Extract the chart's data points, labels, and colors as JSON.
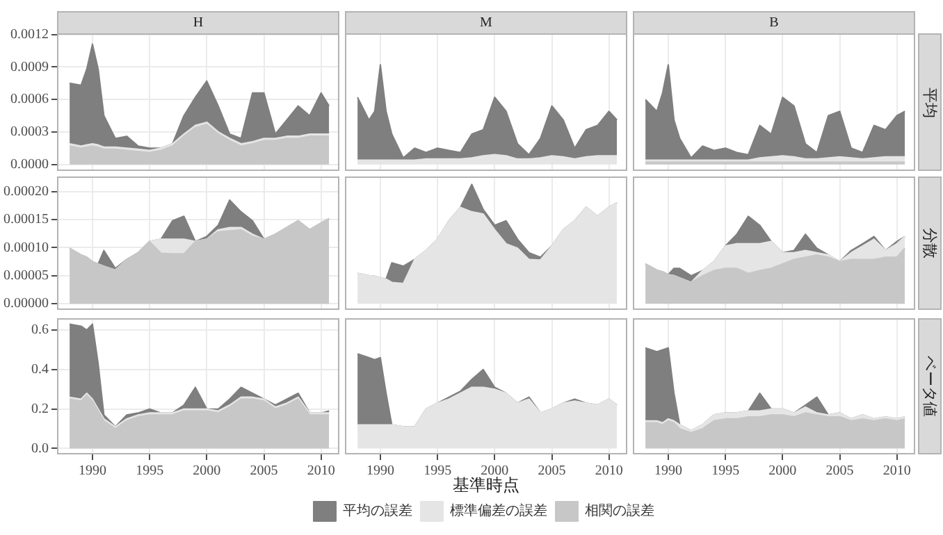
{
  "chart_data": [
    {
      "type": "area",
      "title": "H",
      "stacked": true,
      "grid": true,
      "tick_labels": "y",
      "xlim": [
        1986.9,
        2011.6
      ],
      "xticks": [
        1990,
        1995,
        2000,
        2005,
        2010
      ],
      "ylim": [
        -6e-05,
        0.00121
      ],
      "yticks": [
        {
          "value": 0,
          "label": "0.0000"
        },
        {
          "value": 0.0003,
          "label": "0.0003"
        },
        {
          "value": 0.0006,
          "label": "0.0006"
        },
        {
          "value": 0.0009,
          "label": "0.0009"
        },
        {
          "value": 0.0012,
          "label": "0.0012"
        }
      ],
      "x": [
        1988,
        1989,
        1989.5,
        1990,
        1990.5,
        1991,
        1992,
        1993,
        1994,
        1995,
        1996,
        1997,
        1998,
        1999,
        2000,
        2001,
        2002,
        2003,
        2004,
        2005,
        2006,
        2007,
        2008,
        2009,
        2010,
        2010.7
      ],
      "series": [
        {
          "color": "#c7c7c7",
          "values": [
            0.00017,
            0.00015,
            0.00016,
            0.00017,
            0.00016,
            0.00014,
            0.00014,
            0.00013,
            0.00012,
            0.00011,
            0.00013,
            0.00017,
            0.00026,
            0.00034,
            0.00037,
            0.00028,
            0.00022,
            0.00017,
            0.00019,
            0.00022,
            0.00022,
            0.00024,
            0.00024,
            0.00026,
            0.00026,
            0.00026
          ]
        },
        {
          "color": "#e5e5e5",
          "values": [
            2e-05,
            2e-05,
            2e-05,
            2e-05,
            2e-05,
            2e-05,
            2e-05,
            2e-05,
            2e-05,
            2e-05,
            2e-05,
            2e-05,
            2e-05,
            2e-05,
            2e-05,
            2e-05,
            2e-05,
            2e-05,
            2e-05,
            2e-05,
            2e-05,
            2e-05,
            2e-05,
            2e-05,
            2e-05,
            2e-05
          ]
        },
        {
          "color": "#7f7f7f",
          "values": [
            0.00056,
            0.00056,
            0.0007,
            0.00092,
            0.0007,
            0.00029,
            8e-05,
            0.00011,
            3e-05,
            2e-05,
            0,
            0,
            0.00017,
            0.00026,
            0.00038,
            0.00024,
            4e-05,
            5e-05,
            0.00045,
            0.00042,
            4e-05,
            0.00015,
            0.00028,
            0.00017,
            0.00038,
            0.00026
          ]
        }
      ]
    },
    {
      "type": "area",
      "title": "M",
      "stacked": true,
      "grid": true,
      "tick_labels": false,
      "xlim": [
        1986.9,
        2011.6
      ],
      "xticks": [
        1990,
        1995,
        2000,
        2005,
        2010
      ],
      "ylim": [
        -6e-05,
        0.00121
      ],
      "yticks": [
        {
          "value": 0,
          "label": null
        },
        {
          "value": 0.0003,
          "label": null
        },
        {
          "value": 0.0006,
          "label": null
        },
        {
          "value": 0.0009,
          "label": null
        },
        {
          "value": 0.0012,
          "label": null
        }
      ],
      "x": [
        1988,
        1989,
        1989.5,
        1990,
        1990.5,
        1991,
        1992,
        1993,
        1994,
        1995,
        1996,
        1997,
        1998,
        1999,
        2000,
        2001,
        2002,
        2003,
        2004,
        2005,
        2006,
        2007,
        2008,
        2009,
        2010,
        2010.7
      ],
      "series": [
        {
          "color": "#e5e5e5",
          "values": [
            4e-05,
            4e-05,
            4e-05,
            4e-05,
            4e-05,
            4e-05,
            4e-05,
            4e-05,
            5e-05,
            5e-05,
            5e-05,
            5e-05,
            6e-05,
            8e-05,
            9e-05,
            8e-05,
            5e-05,
            5e-05,
            6e-05,
            8e-05,
            7e-05,
            5e-05,
            7e-05,
            8e-05,
            8e-05,
            8e-05
          ]
        },
        {
          "color": "#7f7f7f",
          "values": [
            0.00058,
            0.00037,
            0.00045,
            0.00088,
            0.00045,
            0.00024,
            2e-05,
            0.00011,
            6e-05,
            0.0001,
            8e-05,
            6e-05,
            0.00022,
            0.00024,
            0.00053,
            0.00041,
            0.00014,
            4e-05,
            0.00018,
            0.00046,
            0.00034,
            0.0001,
            0.00025,
            0.00028,
            0.00041,
            0.00033
          ]
        }
      ]
    },
    {
      "type": "area",
      "title": "B",
      "y2label": "平均",
      "stacked": true,
      "grid": true,
      "tick_labels": false,
      "xlim": [
        1986.9,
        2011.6
      ],
      "xticks": [
        1990,
        1995,
        2000,
        2005,
        2010
      ],
      "ylim": [
        -6e-05,
        0.00121
      ],
      "yticks": [
        {
          "value": 0,
          "label": null
        },
        {
          "value": 0.0003,
          "label": null
        },
        {
          "value": 0.0006,
          "label": null
        },
        {
          "value": 0.0009,
          "label": null
        },
        {
          "value": 0.0012,
          "label": null
        }
      ],
      "x": [
        1988,
        1989,
        1989.5,
        1990,
        1990.5,
        1991,
        1992,
        1993,
        1994,
        1995,
        1996,
        1997,
        1998,
        1999,
        2000,
        2001,
        2002,
        2003,
        2004,
        2005,
        2006,
        2007,
        2008,
        2009,
        2010,
        2010.7
      ],
      "series": [
        {
          "color": "#c7c7c7",
          "values": [
            2e-05,
            2e-05,
            2e-05,
            2e-05,
            2e-05,
            2e-05,
            2e-05,
            2e-05,
            2e-05,
            2e-05,
            2e-05,
            2e-05,
            2e-05,
            2e-05,
            2e-05,
            2e-05,
            2e-05,
            2e-05,
            2e-05,
            2e-05,
            2e-05,
            2e-05,
            2e-05,
            2e-05,
            2e-05,
            2e-05
          ]
        },
        {
          "color": "#e5e5e5",
          "values": [
            2e-05,
            2e-05,
            2e-05,
            2e-05,
            2e-05,
            2e-05,
            2e-05,
            2e-05,
            2e-05,
            2e-05,
            2e-05,
            2e-05,
            4e-05,
            5e-05,
            6e-05,
            5e-05,
            3e-05,
            3e-05,
            4e-05,
            5e-05,
            4e-05,
            3e-05,
            4e-05,
            5e-05,
            5e-05,
            5e-05
          ]
        },
        {
          "color": "#7f7f7f",
          "values": [
            0.00056,
            0.00045,
            0.00062,
            0.00088,
            0.00037,
            0.0002,
            2e-05,
            0.00013,
            9e-05,
            0.00011,
            7e-05,
            5e-05,
            0.0003,
            0.00021,
            0.00054,
            0.00047,
            0.00014,
            6e-05,
            0.00039,
            0.00042,
            9e-05,
            6e-05,
            0.0003,
            0.00025,
            0.00038,
            0.00042
          ]
        }
      ]
    },
    {
      "type": "area",
      "stacked": true,
      "grid": true,
      "tick_labels": "y",
      "xlim": [
        1986.9,
        2011.6
      ],
      "xticks": [
        1990,
        1995,
        2000,
        2005,
        2010
      ],
      "ylim": [
        -1.1e-05,
        0.000227
      ],
      "yticks": [
        {
          "value": 0,
          "label": "0.00000"
        },
        {
          "value": 5e-05,
          "label": "0.00005"
        },
        {
          "value": 0.0001,
          "label": "0.00010"
        },
        {
          "value": 0.00015,
          "label": "0.00015"
        },
        {
          "value": 0.0002,
          "label": "0.00020"
        }
      ],
      "x": [
        1988,
        1989,
        1989.5,
        1990,
        1990.5,
        1991,
        1992,
        1993,
        1994,
        1995,
        1996,
        1997,
        1998,
        1999,
        2000,
        2001,
        2002,
        2003,
        2004,
        2005,
        2006,
        2007,
        2008,
        2009,
        2010,
        2010.7
      ],
      "series": [
        {
          "color": "#c7c7c7",
          "values": [
            9.9e-05,
            8.7e-05,
            8.3e-05,
            7.5e-05,
            7.1e-05,
            6.7e-05,
            6e-05,
            7.9e-05,
            9.1e-05,
            0.000111,
            9e-05,
            8.9e-05,
            8.9e-05,
            0.000111,
            0.000115,
            0.000128,
            0.00013,
            0.000132,
            0.00012,
            0.000115,
            0.000124,
            0.000136,
            0.000148,
            0.000132,
            0.000144,
            0.000152
          ]
        },
        {
          "color": "#e5e5e5",
          "values": [
            0,
            0,
            0,
            0,
            0,
            0,
            0,
            0,
            0,
            0,
            2.5e-05,
            2.6e-05,
            2.6e-05,
            0,
            0,
            4e-06,
            6e-06,
            4e-06,
            4e-06,
            0,
            0,
            0,
            0,
            0,
            0,
            0
          ]
        },
        {
          "color": "#7f7f7f",
          "values": [
            0,
            0,
            0,
            0,
            0,
            2.8e-05,
            3e-06,
            0,
            0,
            0,
            0,
            3.3e-05,
            4.1e-05,
            0,
            5e-06,
            8e-06,
            4.9e-05,
            2.8e-05,
            2.4e-05,
            0,
            0,
            0,
            0,
            0,
            0,
            0
          ]
        }
      ]
    },
    {
      "type": "area",
      "stacked": true,
      "grid": true,
      "tick_labels": false,
      "xlim": [
        1986.9,
        2011.6
      ],
      "xticks": [
        1990,
        1995,
        2000,
        2005,
        2010
      ],
      "ylim": [
        -1.1e-05,
        0.000227
      ],
      "yticks": [
        {
          "value": 0,
          "label": null
        },
        {
          "value": 5e-05,
          "label": null
        },
        {
          "value": 0.0001,
          "label": null
        },
        {
          "value": 0.00015,
          "label": null
        },
        {
          "value": 0.0002,
          "label": null
        }
      ],
      "x": [
        1988,
        1989,
        1989.5,
        1990,
        1990.5,
        1991,
        1992,
        1993,
        1994,
        1995,
        1996,
        1997,
        1998,
        1999,
        2000,
        2001,
        2002,
        2003,
        2004,
        2005,
        2006,
        2007,
        2008,
        2009,
        2010,
        2010.7
      ],
      "series": [
        {
          "color": "#e5e5e5",
          "values": [
            5.4e-05,
            5e-05,
            4.9e-05,
            4.6e-05,
            4.4e-05,
            3.8e-05,
            3.6e-05,
            7.9e-05,
            9.5e-05,
            0.000115,
            0.000148,
            0.000172,
            0.000164,
            0.00016,
            0.000132,
            0.000107,
            9.9e-05,
            7.9e-05,
            7.8e-05,
            0.000103,
            0.000132,
            0.000148,
            0.000172,
            0.000156,
            0.000172,
            0.00018
          ]
        },
        {
          "color": "#7f7f7f",
          "values": [
            0,
            0,
            0,
            0,
            0,
            3.5e-05,
            3.1e-05,
            0,
            0,
            0,
            0,
            0,
            4.9e-05,
            8e-06,
            8e-06,
            4.1e-05,
            1.6e-05,
            1.2e-05,
            5e-06,
            0,
            0,
            0,
            0,
            0,
            0,
            0
          ]
        }
      ]
    },
    {
      "type": "area",
      "y2label": "分散",
      "stacked": true,
      "grid": true,
      "tick_labels": false,
      "xlim": [
        1986.9,
        2011.6
      ],
      "xticks": [
        1990,
        1995,
        2000,
        2005,
        2010
      ],
      "ylim": [
        -1.1e-05,
        0.000227
      ],
      "yticks": [
        {
          "value": 0,
          "label": null
        },
        {
          "value": 5e-05,
          "label": null
        },
        {
          "value": 0.0001,
          "label": null
        },
        {
          "value": 0.00015,
          "label": null
        },
        {
          "value": 0.0002,
          "label": null
        }
      ],
      "x": [
        1988,
        1989,
        1989.5,
        1990,
        1990.5,
        1991,
        1992,
        1993,
        1994,
        1995,
        1996,
        1997,
        1998,
        1999,
        2000,
        2001,
        2002,
        2003,
        2004,
        2005,
        2006,
        2007,
        2008,
        2009,
        2010,
        2010.7
      ],
      "series": [
        {
          "color": "#c7c7c7",
          "values": [
            7.1e-05,
            6e-05,
            5.7e-05,
            5.2e-05,
            5e-05,
            4.6e-05,
            3.8e-05,
            5e-05,
            5.9e-05,
            6.3e-05,
            6.3e-05,
            5.4e-05,
            5.9e-05,
            6.3e-05,
            7.1e-05,
            7.9e-05,
            8.3e-05,
            8.7e-05,
            8.3e-05,
            7.5e-05,
            7.9e-05,
            7.9e-05,
            7.9e-05,
            8.3e-05,
            8.3e-05,
            9.9e-05
          ]
        },
        {
          "color": "#e5e5e5",
          "values": [
            0,
            0,
            0,
            0,
            0,
            0,
            0,
            9e-06,
            1.6e-05,
            4e-05,
            4.4e-05,
            5.3e-05,
            4.8e-05,
            4.8e-05,
            2e-05,
            1.2e-05,
            1.2e-05,
            4e-06,
            4e-06,
            0,
            1.2e-05,
            2.4e-05,
            3.6e-05,
            1.2e-05,
            2.4e-05,
            2.1e-05
          ]
        },
        {
          "color": "#7f7f7f",
          "values": [
            0,
            0,
            0,
            0,
            1.3e-05,
            1.7e-05,
            1.2e-05,
            0,
            0,
            0,
            1.7e-05,
            4.9e-05,
            3.3e-05,
            0,
            0,
            4e-06,
            2.9e-05,
            8e-06,
            0,
            0,
            4e-06,
            4e-06,
            5e-06,
            0,
            4e-06,
            0
          ]
        }
      ]
    },
    {
      "type": "area",
      "stacked": true,
      "grid": true,
      "xlim": [
        1986.9,
        2011.6
      ],
      "xticks": [
        1990,
        1995,
        2000,
        2005,
        2010
      ],
      "ylim": [
        -0.03,
        0.66
      ],
      "yticks": [
        {
          "value": 0,
          "label": "0.0"
        },
        {
          "value": 0.2,
          "label": "0.2"
        },
        {
          "value": 0.4,
          "label": "0.4"
        },
        {
          "value": 0.6,
          "label": "0.6"
        }
      ],
      "x": [
        1988,
        1989,
        1989.5,
        1990,
        1990.5,
        1991,
        1992,
        1993,
        1994,
        1995,
        1996,
        1997,
        1998,
        1999,
        2000,
        2001,
        2002,
        2003,
        2004,
        2005,
        2006,
        2007,
        2008,
        2009,
        2010,
        2010.7
      ],
      "series": [
        {
          "color": "#c7c7c7",
          "values": [
            0.25,
            0.24,
            0.27,
            0.24,
            0.19,
            0.14,
            0.1,
            0.14,
            0.16,
            0.17,
            0.17,
            0.17,
            0.19,
            0.19,
            0.19,
            0.18,
            0.21,
            0.25,
            0.25,
            0.24,
            0.2,
            0.22,
            0.25,
            0.17,
            0.17,
            0.17
          ]
        },
        {
          "color": "#e5e5e5",
          "values": [
            0.01,
            0.01,
            0.01,
            0.01,
            0.01,
            0.01,
            0.01,
            0.01,
            0.01,
            0.01,
            0.01,
            0.01,
            0.01,
            0.01,
            0.01,
            0.01,
            0.01,
            0.01,
            0.01,
            0.01,
            0.01,
            0.01,
            0.01,
            0.01,
            0.01,
            0.01
          ]
        },
        {
          "color": "#7f7f7f",
          "values": [
            0.37,
            0.37,
            0.32,
            0.38,
            0.23,
            0.02,
            0,
            0.02,
            0.01,
            0.02,
            0,
            0,
            0.02,
            0.11,
            0,
            0.01,
            0.03,
            0.05,
            0.02,
            0,
            0.01,
            0.02,
            0.02,
            0,
            0,
            0.01
          ]
        }
      ]
    },
    {
      "type": "area",
      "xlabel": "基準時点",
      "stacked": true,
      "grid": true,
      "tick_labels": "x",
      "xlim": [
        1986.9,
        2011.6
      ],
      "xticks": [
        1990,
        1995,
        2000,
        2005,
        2010
      ],
      "ylim": [
        -0.03,
        0.66
      ],
      "yticks": [
        {
          "value": 0,
          "label": null
        },
        {
          "value": 0.2,
          "label": null
        },
        {
          "value": 0.4,
          "label": null
        },
        {
          "value": 0.6,
          "label": null
        }
      ],
      "x": [
        1988,
        1989,
        1989.5,
        1990,
        1990.5,
        1991,
        1992,
        1993,
        1994,
        1995,
        1996,
        1997,
        1998,
        1999,
        2000,
        2001,
        2002,
        2003,
        2004,
        2005,
        2006,
        2007,
        2008,
        2009,
        2010,
        2010.7
      ],
      "series": [
        {
          "color": "#e5e5e5",
          "values": [
            0.12,
            0.12,
            0.12,
            0.12,
            0.12,
            0.12,
            0.11,
            0.11,
            0.2,
            0.23,
            0.25,
            0.28,
            0.31,
            0.31,
            0.3,
            0.28,
            0.23,
            0.25,
            0.18,
            0.2,
            0.23,
            0.24,
            0.23,
            0.22,
            0.25,
            0.22
          ]
        },
        {
          "color": "#7f7f7f",
          "values": [
            0.36,
            0.34,
            0.33,
            0.34,
            0.16,
            0,
            0,
            0,
            0,
            0,
            0.01,
            0.01,
            0.04,
            0.09,
            0.01,
            0,
            0,
            0.01,
            0,
            0,
            0,
            0.01,
            0,
            0,
            0,
            0
          ]
        }
      ]
    },
    {
      "type": "area",
      "y2label": "ベータ値",
      "legend": "bottom",
      "stacked": true,
      "grid": true,
      "tick_labels": "x",
      "xlim": [
        1986.9,
        2011.6
      ],
      "xticks": [
        1990,
        1995,
        2000,
        2005,
        2010
      ],
      "ylim": [
        -0.03,
        0.66
      ],
      "yticks": [
        {
          "value": 0,
          "label": null
        },
        {
          "value": 0.2,
          "label": null
        },
        {
          "value": 0.4,
          "label": null
        },
        {
          "value": 0.6,
          "label": null
        }
      ],
      "x": [
        1988,
        1989,
        1989.5,
        1990,
        1990.5,
        1991,
        1992,
        1993,
        1994,
        1995,
        1996,
        1997,
        1998,
        1999,
        2000,
        2001,
        2002,
        2003,
        2004,
        2005,
        2006,
        2007,
        2008,
        2009,
        2010,
        2010.7
      ],
      "series": [
        {
          "name": "相関の誤差",
          "color": "#c7c7c7",
          "values": [
            0.13,
            0.13,
            0.12,
            0.14,
            0.13,
            0.1,
            0.08,
            0.1,
            0.14,
            0.15,
            0.15,
            0.16,
            0.16,
            0.17,
            0.17,
            0.16,
            0.18,
            0.17,
            0.16,
            0.16,
            0.14,
            0.15,
            0.14,
            0.15,
            0.14,
            0.15
          ]
        },
        {
          "name": "標準偏差の誤差",
          "color": "#e5e5e5",
          "values": [
            0.01,
            0.01,
            0.01,
            0.01,
            0.01,
            0.02,
            0.01,
            0.02,
            0.03,
            0.03,
            0.03,
            0.03,
            0.03,
            0.03,
            0.03,
            0.02,
            0.03,
            0.01,
            0.01,
            0.02,
            0.01,
            0.02,
            0.01,
            0.01,
            0.01,
            0.01
          ]
        },
        {
          "name": "平均の誤差",
          "color": "#7f7f7f",
          "values": [
            0.37,
            0.35,
            0.37,
            0.36,
            0.14,
            0,
            0,
            0,
            0,
            0,
            0,
            0,
            0.09,
            0,
            0,
            0,
            0.01,
            0.08,
            0,
            0,
            0,
            0,
            0,
            0,
            0,
            0
          ]
        }
      ]
    }
  ]
}
